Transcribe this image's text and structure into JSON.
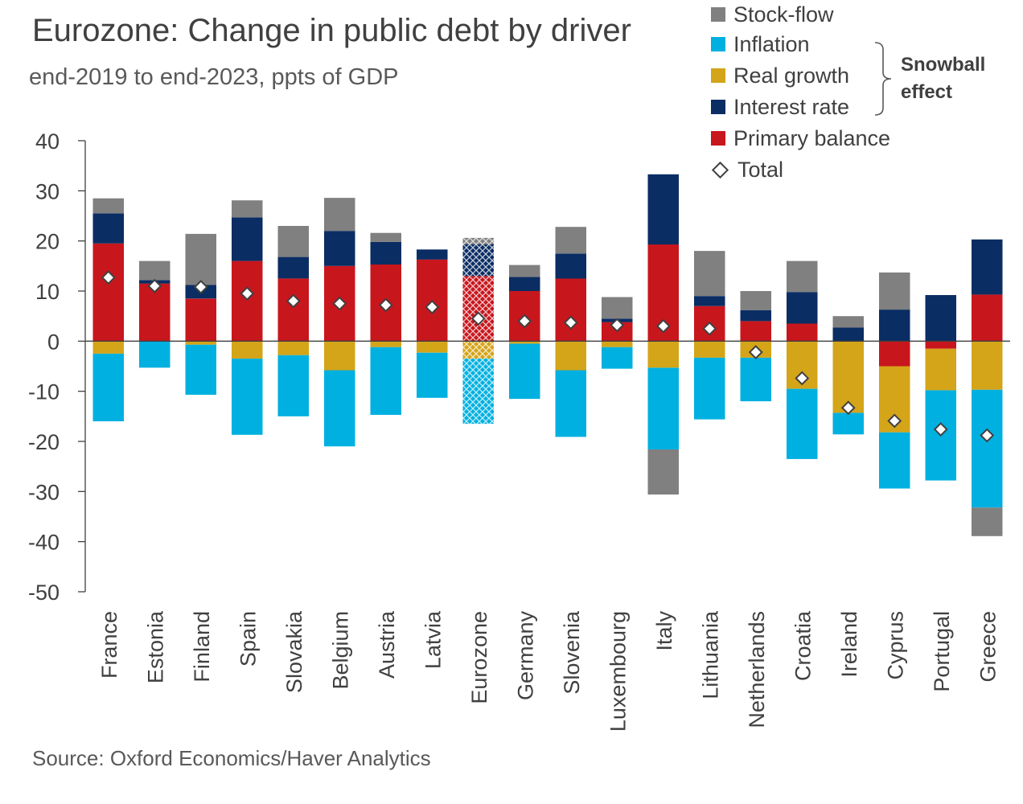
{
  "title": "Eurozone: Change in public debt by driver",
  "subtitle": "end-2019 to end-2023, ppts of GDP",
  "source": "Source: Oxford Economics/Haver Analytics",
  "legend": {
    "items": [
      {
        "label": "Stock-flow",
        "color": "#808080"
      },
      {
        "label": "Inflation",
        "color": "#00b0e0"
      },
      {
        "label": "Real growth",
        "color": "#d4a419"
      },
      {
        "label": "Interest rate",
        "color": "#0a2d63"
      },
      {
        "label": "Primary balance",
        "color": "#c8161d"
      },
      {
        "label": "Total",
        "marker": "diamond"
      }
    ],
    "bracket_label_line1": "Snowball",
    "bracket_label_line2": "effect"
  },
  "chart_data": {
    "type": "bar",
    "stacked": true,
    "ylim": [
      -50,
      40
    ],
    "yticks": [
      40,
      30,
      20,
      10,
      0,
      -10,
      -20,
      -30,
      -40,
      -50
    ],
    "grid": false,
    "legend_position": "top-right",
    "highlighted_category": "Eurozone",
    "categories": [
      "France",
      "Estonia",
      "Finland",
      "Spain",
      "Slovakia",
      "Belgium",
      "Austria",
      "Latvia",
      "Eurozone",
      "Germany",
      "Slovenia",
      "Luxembourg",
      "Italy",
      "Lithuania",
      "Netherlands",
      "Croatia",
      "Ireland",
      "Cyprus",
      "Portugal",
      "Greece"
    ],
    "series": [
      {
        "name": "Primary balance",
        "color": "#c8161d",
        "values": [
          19.5,
          11.5,
          8.5,
          16,
          12.5,
          15,
          15.3,
          16.3,
          13,
          10,
          12.5,
          3.8,
          19.3,
          7,
          4,
          3.5,
          0,
          -5,
          -1.5,
          9.3
        ]
      },
      {
        "name": "Interest rate",
        "color": "#0a2d63",
        "values": [
          6,
          0.7,
          2.7,
          8.7,
          4.3,
          7,
          4.5,
          2,
          6.3,
          2.8,
          5,
          0.7,
          14,
          2,
          2.2,
          6.3,
          2.7,
          6.3,
          9.2,
          11
        ]
      },
      {
        "name": "Real growth",
        "color": "#d4a419",
        "values": [
          -2.5,
          0,
          -0.7,
          -3.5,
          -2.8,
          -5.8,
          -1.2,
          -2.3,
          -3.5,
          -0.5,
          -5.8,
          -1.2,
          -5.3,
          -3.3,
          -3.3,
          -9.5,
          -14.3,
          -13.2,
          -8.3,
          -9.7
        ]
      },
      {
        "name": "Inflation",
        "color": "#00b0e0",
        "values": [
          -13.5,
          -5.3,
          -10,
          -15.2,
          -12.2,
          -15.2,
          -13.5,
          -9,
          -13,
          -11,
          -13.3,
          -4.3,
          -16.3,
          -12.3,
          -8.7,
          -14,
          -4.3,
          -11.2,
          -18,
          -23.5
        ]
      },
      {
        "name": "Stock-flow",
        "color": "#808080",
        "values": [
          3,
          3.8,
          10.2,
          3.4,
          6.2,
          6.6,
          1.8,
          0,
          1.3,
          2.4,
          5.3,
          4.3,
          -9,
          9,
          3.8,
          6.2,
          2.3,
          7.4,
          0,
          -5.7
        ]
      }
    ],
    "total": [
      12.7,
      11,
      10.8,
      9.5,
      8,
      7.5,
      7.2,
      6.8,
      4.5,
      4,
      3.7,
      3.2,
      3,
      2.5,
      -2.2,
      -7.4,
      -13.3,
      -15.9,
      -17.6,
      -18.8
    ]
  }
}
